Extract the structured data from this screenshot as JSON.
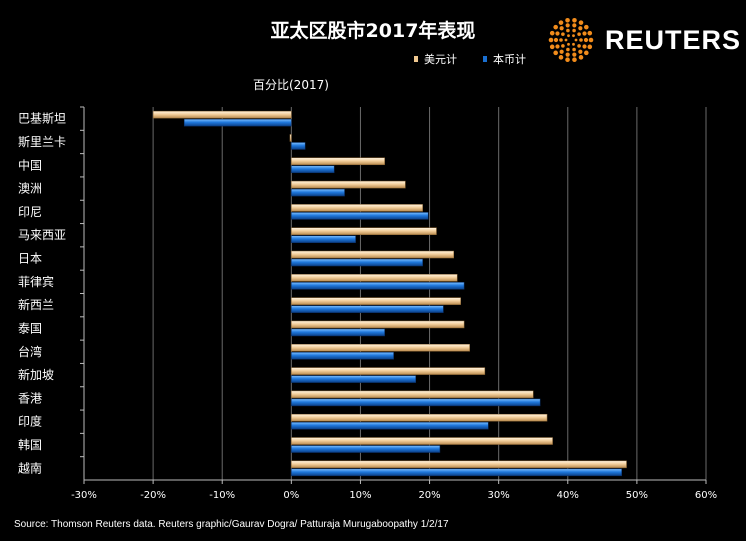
{
  "chart_data": {
    "type": "bar",
    "orientation": "horizontal",
    "title": "亚太区股市2017年表现",
    "subtitle": "百分比(2017)",
    "xlabel": "",
    "ylabel": "",
    "xlim": [
      -30,
      60
    ],
    "x_ticks": [
      "-30%",
      "-20%",
      "-10%",
      "0%",
      "10%",
      "20%",
      "30%",
      "40%",
      "50%",
      "60%"
    ],
    "x_tick_values": [
      -30,
      -20,
      -10,
      0,
      10,
      20,
      30,
      40,
      50,
      60
    ],
    "grid": true,
    "legend_position": "top-right",
    "categories": [
      "巴基斯坦",
      "斯里兰卡",
      "中国",
      "澳洲",
      "印尼",
      "马来西亚",
      "日本",
      "菲律宾",
      "新西兰",
      "泰国",
      "台湾",
      "新加坡",
      "香港",
      "印度",
      "韩国",
      "越南"
    ],
    "series": [
      {
        "name": "美元计",
        "color": "#f0c890",
        "values": [
          -20,
          -0.2,
          13.5,
          16.5,
          19,
          21,
          23.5,
          24,
          24.5,
          25,
          25.8,
          28,
          35,
          37,
          37.8,
          48.5
        ]
      },
      {
        "name": "本币计",
        "color": "#1a6fd0",
        "values": [
          -15.5,
          2,
          6.2,
          7.7,
          19.8,
          9.3,
          19,
          25,
          22,
          13.5,
          14.8,
          18,
          36,
          28.5,
          21.5,
          47.8
        ]
      }
    ]
  },
  "logo": {
    "text": "REUTERS",
    "icon": "reuters-dot-logo-icon"
  },
  "source": "Source: Thomson Reuters data.  Reuters graphic/Gaurav Dogra/ Patturaja Murugaboopathy 1/2/17"
}
